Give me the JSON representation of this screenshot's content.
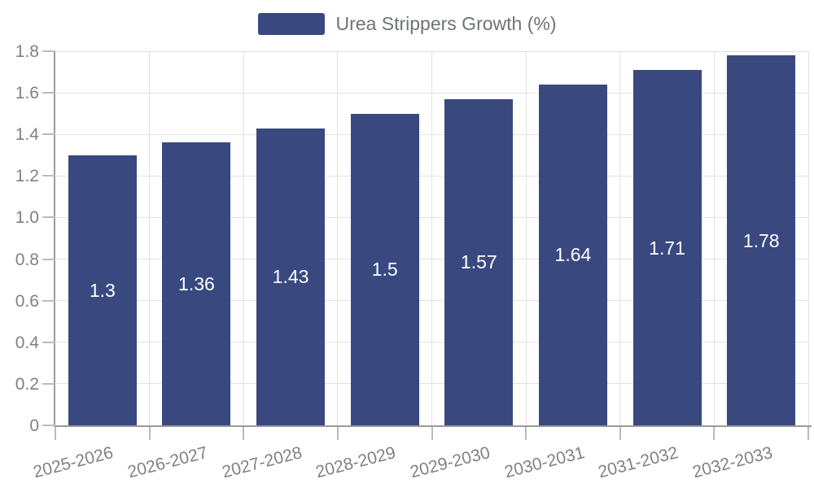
{
  "chart_data": {
    "type": "bar",
    "title": "",
    "legend": "Urea Strippers Growth (%)",
    "legend_position": "top-center",
    "categories": [
      "2025-2026",
      "2026-2027",
      "2027-2028",
      "2028-2029",
      "2029-2030",
      "2030-2031",
      "2031-2032",
      "2032-2033"
    ],
    "values": [
      1.3,
      1.36,
      1.43,
      1.5,
      1.57,
      1.64,
      1.71,
      1.78
    ],
    "bar_value_labels": [
      "1.3",
      "1.36",
      "1.43",
      "1.5",
      "1.57",
      "1.64",
      "1.71",
      "1.78"
    ],
    "ylim": [
      0,
      1.8
    ],
    "y_ticks": [
      "0",
      "0.2",
      "0.4",
      "0.6",
      "0.8",
      "1.0",
      "1.2",
      "1.4",
      "1.6",
      "1.8"
    ],
    "grid": true,
    "colors": {
      "bar": "#394980",
      "bar_label": "#ffffff",
      "axis_text": "#7f8184",
      "legend_text": "#6f7276",
      "grid_line": "#e2e2e2",
      "tick_line": "#bbbbbb",
      "axis_line": "#9b9b9b",
      "background": "#ffffff"
    }
  }
}
